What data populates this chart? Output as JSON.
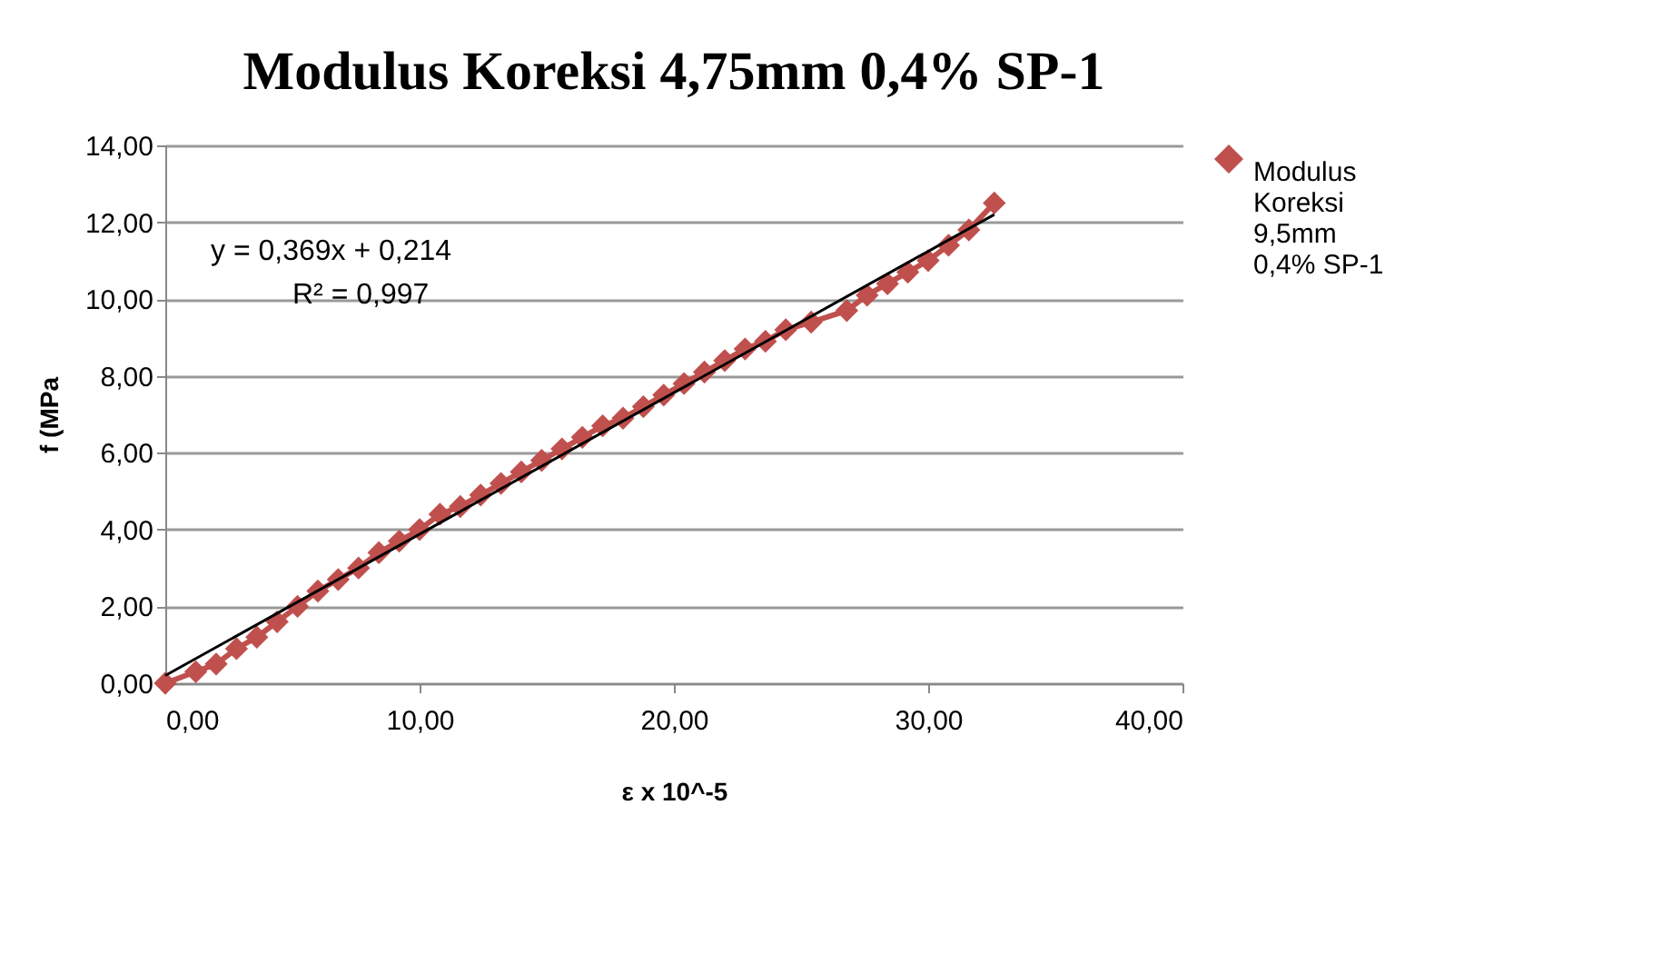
{
  "chart_data": {
    "type": "line",
    "title": "Modulus Koreksi 4,75mm 0,4% SP-1",
    "xlabel": "ε x 10^-5",
    "ylabel": "f (MPa",
    "series": [
      {
        "name": "Modulus Koreksi 9,5mm 0,4% SP-1",
        "marker": "diamond",
        "color": "#c0504d",
        "x": [
          0,
          1.2,
          2,
          2.8,
          3.6,
          4.4,
          5.2,
          6,
          6.8,
          7.6,
          8.4,
          9.2,
          10,
          10.8,
          11.6,
          12.4,
          13.2,
          14,
          14.8,
          15.6,
          16.4,
          17.2,
          18,
          18.8,
          19.6,
          20.4,
          21.2,
          22,
          22.8,
          23.6,
          24.4,
          25.4,
          26.8,
          27.6,
          28.4,
          29.2,
          30,
          30.8,
          31.6,
          32.6
        ],
        "values": [
          0,
          0.3,
          0.5,
          0.9,
          1.2,
          1.6,
          2.0,
          2.4,
          2.7,
          3.0,
          3.4,
          3.7,
          4.0,
          4.4,
          4.6,
          4.9,
          5.2,
          5.5,
          5.8,
          6.1,
          6.4,
          6.7,
          6.9,
          7.2,
          7.5,
          7.8,
          8.1,
          8.4,
          8.7,
          8.9,
          9.2,
          9.4,
          9.7,
          10.1,
          10.4,
          10.7,
          11.0,
          11.4,
          11.8,
          12.5
        ]
      },
      {
        "marker": "none",
        "color": "#000000",
        "x": [
          0,
          32.6
        ],
        "values": [
          0.2,
          12.2
        ]
      }
    ],
    "annotations": [
      "y = 0,369x + 0,214",
      "R² = 0,997"
    ],
    "xlim": [
      0,
      40
    ],
    "ylim": [
      0,
      14
    ],
    "xticks": [
      {
        "value": 0,
        "label": "0,00"
      },
      {
        "value": 10,
        "label": "10,00"
      },
      {
        "value": 20,
        "label": "20,00"
      },
      {
        "value": 30,
        "label": "30,00"
      },
      {
        "value": 40,
        "label": "40,00"
      }
    ],
    "yticks": [
      {
        "value": 0,
        "label": "0,00"
      },
      {
        "value": 2,
        "label": "2,00"
      },
      {
        "value": 4,
        "label": "4,00"
      },
      {
        "value": 6,
        "label": "6,00"
      },
      {
        "value": 8,
        "label": "8,00"
      },
      {
        "value": 10,
        "label": "10,00"
      },
      {
        "value": 12,
        "label": "12,00"
      },
      {
        "value": 14,
        "label": "14,00"
      }
    ],
    "grid": "y",
    "legend": "right"
  }
}
